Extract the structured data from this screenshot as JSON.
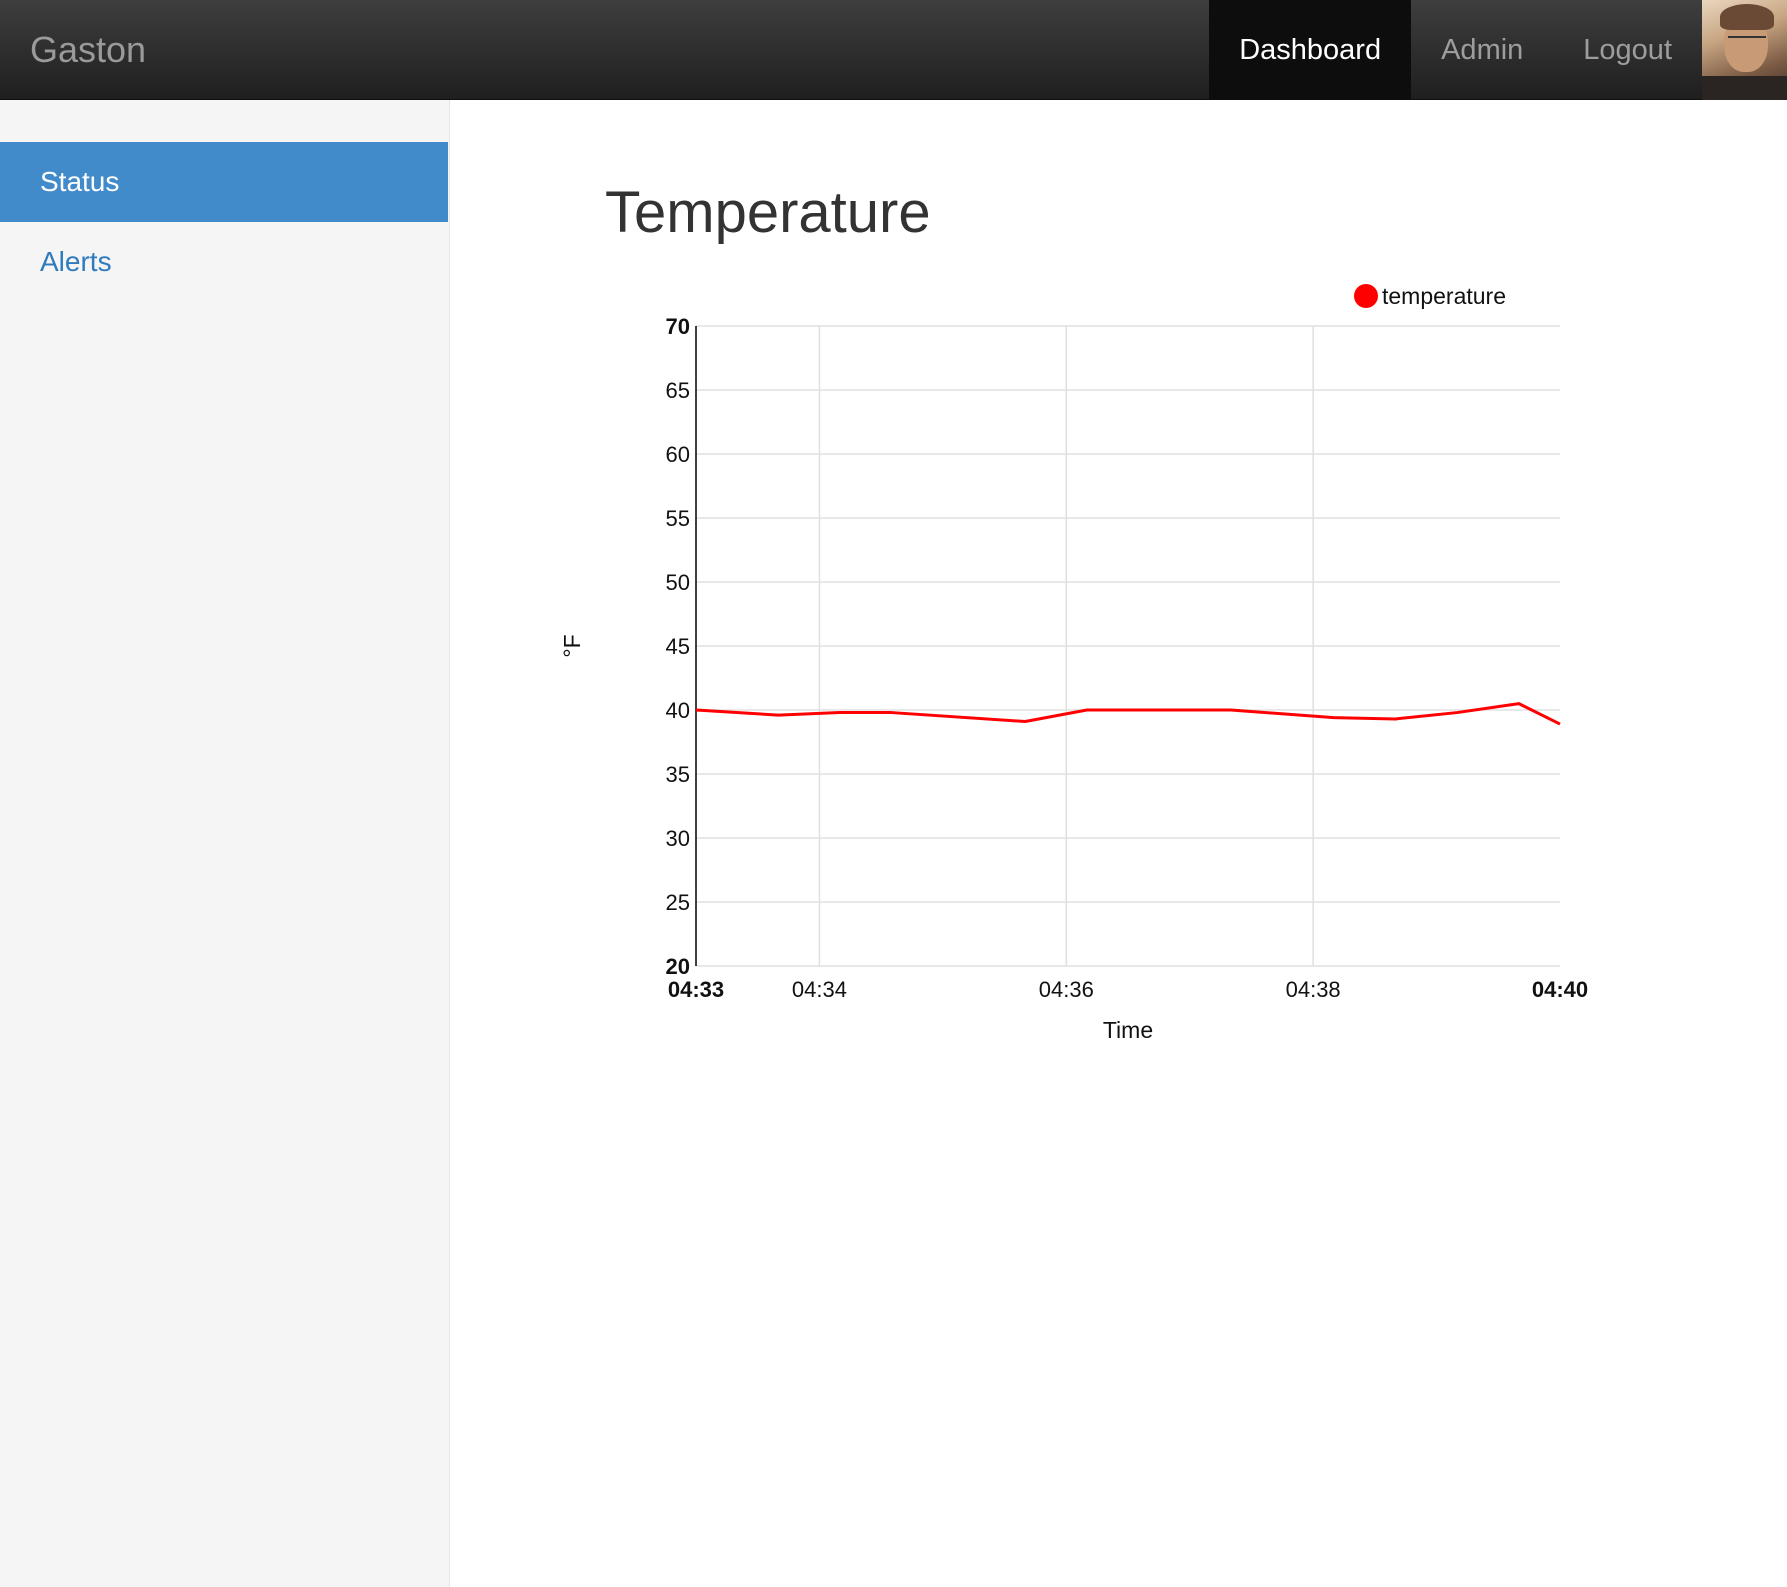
{
  "app": {
    "brand": "Gaston",
    "nav": [
      {
        "label": "Dashboard",
        "active": true
      },
      {
        "label": "Admin",
        "active": false
      },
      {
        "label": "Logout",
        "active": false
      }
    ]
  },
  "sidebar": {
    "items": [
      {
        "label": "Status",
        "active": true
      },
      {
        "label": "Alerts",
        "active": false
      }
    ]
  },
  "main": {
    "title": "Temperature"
  },
  "colors": {
    "accent": "#428bca",
    "series": "#ff0000"
  },
  "chart_data": {
    "type": "line",
    "title": "",
    "xlabel": "Time",
    "ylabel": "°F",
    "ylim": [
      20,
      70
    ],
    "xlim": [
      "04:33",
      "04:40"
    ],
    "grid": true,
    "legend": "top-right",
    "y_ticks": [
      20,
      25,
      30,
      35,
      40,
      45,
      50,
      55,
      60,
      65,
      70
    ],
    "x_ticks": [
      "04:33",
      "04:34",
      "04:36",
      "04:38",
      "04:40"
    ],
    "series": [
      {
        "name": "temperature",
        "color": "#ff0000",
        "x": [
          "04:33:00",
          "04:33:40",
          "04:34:10",
          "04:34:35",
          "04:35:40",
          "04:36:10",
          "04:37:20",
          "04:38:10",
          "04:38:40",
          "04:39:10",
          "04:39:40",
          "04:40:00"
        ],
        "y": [
          40.0,
          39.6,
          39.8,
          39.8,
          39.1,
          40.0,
          40.0,
          39.4,
          39.3,
          39.8,
          40.5,
          38.9
        ]
      }
    ]
  }
}
